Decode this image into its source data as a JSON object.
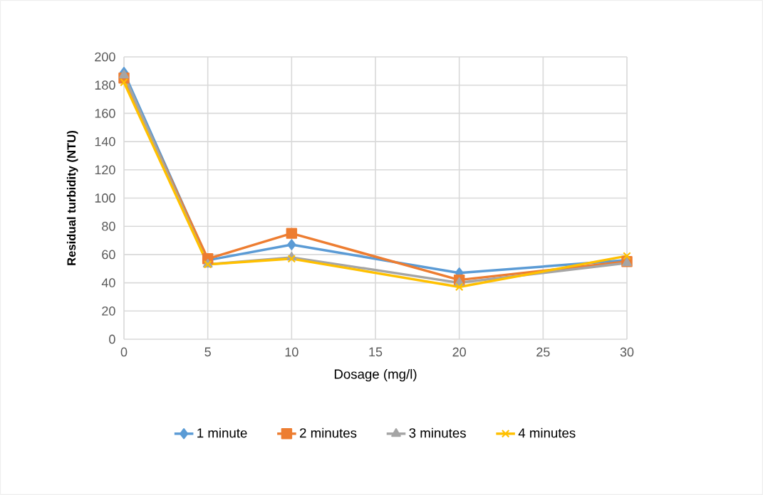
{
  "chart_data": {
    "type": "line",
    "xlabel": "Dosage (mg/l)",
    "ylabel": "Residual turbidity (NTU)",
    "x": [
      0,
      5,
      10,
      20,
      30
    ],
    "series": [
      {
        "name": "1 minute",
        "color": "#5b9bd5",
        "marker": "diamond",
        "values": [
          189,
          56,
          67,
          47,
          56
        ]
      },
      {
        "name": "2 minutes",
        "color": "#ed7d31",
        "marker": "square",
        "values": [
          185,
          57,
          75,
          42,
          55
        ]
      },
      {
        "name": "3 minutes",
        "color": "#a5a5a5",
        "marker": "triangle",
        "values": [
          187,
          53,
          58,
          40,
          54
        ]
      },
      {
        "name": "4 minutes",
        "color": "#ffc000",
        "marker": "cross",
        "values": [
          182,
          53,
          57,
          37,
          59
        ]
      }
    ],
    "xlim": [
      0,
      30
    ],
    "ylim": [
      0,
      200
    ],
    "xticks": [
      0,
      5,
      10,
      15,
      20,
      25,
      30
    ],
    "yticks": [
      0,
      20,
      40,
      60,
      80,
      100,
      120,
      140,
      160,
      180,
      200
    ],
    "grid": true,
    "legend": "bottom",
    "line_style": "solid"
  }
}
